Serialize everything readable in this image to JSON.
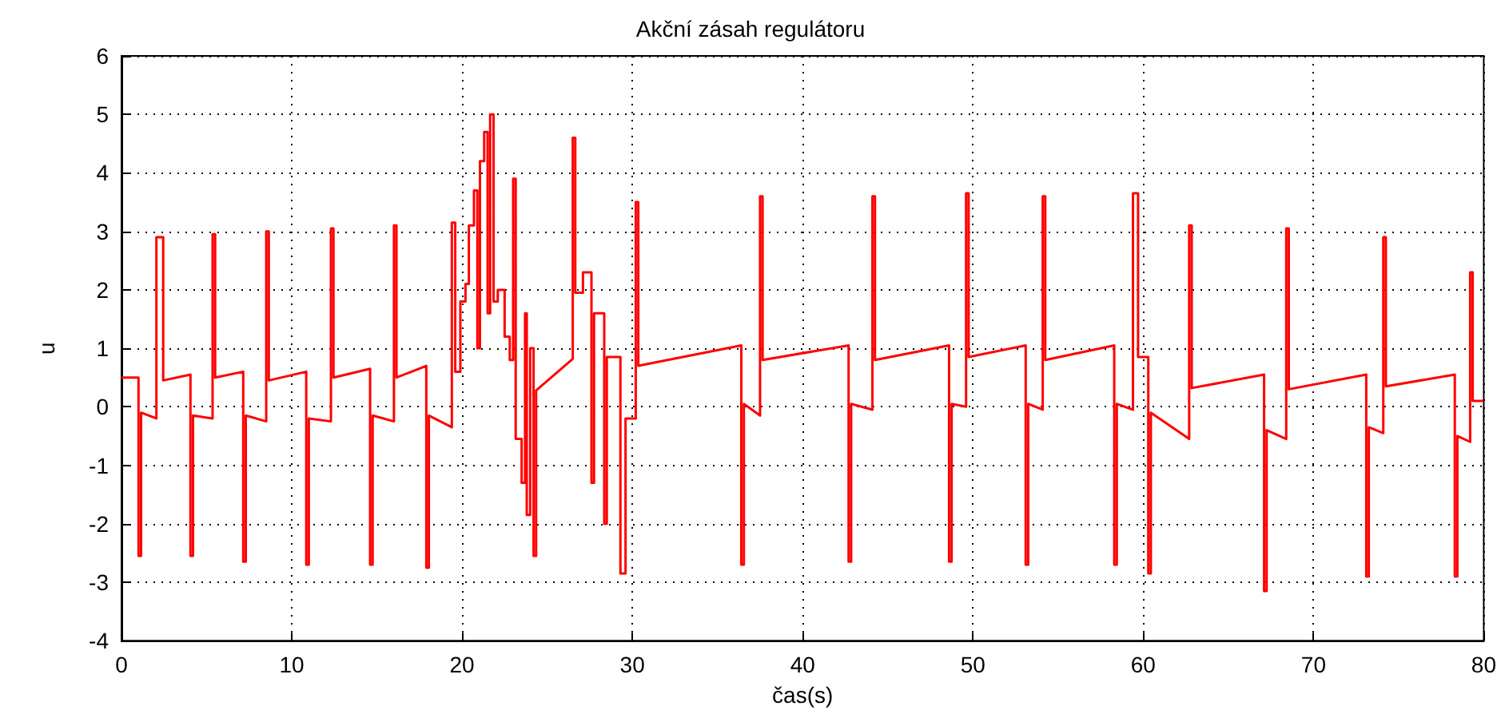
{
  "chart_data": {
    "type": "line",
    "title": "Akční zásah regulátoru",
    "xlabel": "čas(s)",
    "ylabel": "u",
    "xlim": [
      0,
      80
    ],
    "xticks": [
      0,
      10,
      20,
      30,
      40,
      50,
      60,
      70,
      80
    ],
    "ylim": [
      -4,
      6
    ],
    "yticks": [
      -4,
      -3,
      -2,
      -1,
      0,
      1,
      2,
      3,
      4,
      5,
      6
    ],
    "grid": true,
    "marker": "none",
    "line_style": "solid",
    "series": [
      {
        "color": "#ff0000",
        "x": [
          0,
          1.0,
          1.0,
          1.15,
          1.15,
          2.05,
          2.05,
          2.45,
          2.45,
          4.05,
          4.05,
          4.2,
          4.2,
          5.35,
          5.35,
          5.5,
          5.5,
          7.15,
          7.15,
          7.3,
          7.3,
          8.5,
          8.5,
          8.65,
          8.65,
          10.85,
          10.85,
          11.0,
          11.0,
          12.3,
          12.3,
          12.45,
          12.45,
          14.6,
          14.6,
          14.75,
          14.75,
          16.0,
          16.0,
          16.15,
          16.15,
          17.9,
          17.9,
          18.05,
          18.05,
          19.4,
          19.4,
          19.6,
          19.6,
          19.9,
          19.9,
          20.2,
          20.2,
          20.4,
          20.4,
          20.7,
          20.7,
          20.9,
          20.9,
          21.05,
          21.05,
          21.3,
          21.3,
          21.5,
          21.5,
          21.65,
          21.65,
          21.85,
          21.85,
          22.1,
          22.1,
          22.5,
          22.5,
          22.8,
          22.8,
          23.0,
          23.0,
          23.15,
          23.15,
          23.5,
          23.5,
          23.7,
          23.7,
          23.8,
          23.8,
          24.0,
          24.0,
          24.2,
          24.2,
          24.35,
          24.35,
          26.5,
          26.5,
          26.65,
          26.65,
          27.1,
          27.1,
          27.6,
          27.6,
          27.75,
          27.75,
          28.35,
          28.35,
          28.5,
          28.5,
          29.3,
          29.3,
          29.6,
          29.6,
          30.2,
          30.2,
          30.35,
          30.35,
          36.4,
          36.4,
          36.55,
          36.55,
          37.5,
          37.5,
          37.65,
          37.65,
          42.7,
          42.7,
          42.85,
          42.85,
          44.1,
          44.1,
          44.25,
          44.25,
          48.6,
          48.6,
          48.75,
          48.75,
          49.6,
          49.6,
          49.75,
          49.75,
          53.1,
          53.1,
          53.25,
          53.25,
          54.1,
          54.1,
          54.25,
          54.25,
          58.3,
          58.3,
          58.45,
          58.45,
          59.4,
          59.4,
          59.7,
          59.7,
          60.3,
          60.3,
          60.45,
          60.45,
          62.7,
          62.7,
          62.85,
          62.85,
          67.1,
          67.1,
          67.25,
          67.25,
          68.4,
          68.4,
          68.55,
          68.55,
          73.1,
          73.1,
          73.25,
          73.25,
          74.1,
          74.1,
          74.25,
          74.25,
          78.3,
          78.3,
          78.45,
          78.45,
          79.2,
          79.2,
          79.35,
          79.35,
          80
        ],
        "values": [
          0.5,
          0.5,
          -2.55,
          -2.55,
          -0.1,
          -0.2,
          2.9,
          2.9,
          0.45,
          0.55,
          -2.55,
          -2.55,
          -0.15,
          -0.2,
          2.95,
          2.95,
          0.5,
          0.6,
          -2.65,
          -2.65,
          -0.15,
          -0.25,
          3.0,
          3.0,
          0.45,
          0.6,
          -2.7,
          -2.7,
          -0.2,
          -0.25,
          3.05,
          3.05,
          0.5,
          0.65,
          -2.7,
          -2.7,
          -0.15,
          -0.25,
          3.1,
          3.1,
          0.5,
          0.7,
          -2.75,
          -2.75,
          -0.15,
          -0.35,
          3.15,
          3.15,
          0.6,
          0.6,
          1.8,
          1.8,
          2.1,
          2.1,
          3.1,
          3.1,
          3.7,
          3.7,
          1.0,
          1.0,
          4.2,
          4.2,
          4.7,
          4.7,
          1.6,
          1.6,
          5.0,
          5.0,
          1.8,
          1.8,
          2.0,
          2.0,
          1.2,
          1.2,
          0.8,
          0.8,
          3.9,
          3.9,
          -0.55,
          -0.55,
          -1.3,
          -1.3,
          1.6,
          1.6,
          -1.85,
          -1.85,
          1.0,
          1.0,
          -2.55,
          -2.55,
          0.28,
          0.82,
          4.6,
          4.6,
          1.95,
          1.95,
          2.3,
          2.3,
          -1.3,
          -1.3,
          1.6,
          1.6,
          -2.0,
          -2.0,
          0.85,
          0.85,
          -2.85,
          -2.85,
          -0.2,
          -0.2,
          3.5,
          3.5,
          0.7,
          1.05,
          -2.7,
          -2.7,
          0.05,
          -0.15,
          3.6,
          3.6,
          0.8,
          1.05,
          -2.65,
          -2.65,
          0.05,
          -0.05,
          3.6,
          3.6,
          0.8,
          1.05,
          -2.65,
          -2.65,
          0.05,
          0.0,
          3.65,
          3.65,
          0.85,
          1.05,
          -2.7,
          -2.7,
          0.05,
          -0.05,
          3.6,
          3.6,
          0.8,
          1.05,
          -2.7,
          -2.7,
          0.05,
          -0.05,
          3.65,
          3.65,
          0.85,
          0.85,
          -2.85,
          -2.85,
          -0.1,
          -0.55,
          3.1,
          3.1,
          0.32,
          0.55,
          -3.15,
          -3.15,
          -0.4,
          -0.55,
          3.05,
          3.05,
          0.3,
          0.55,
          -2.9,
          -2.9,
          -0.35,
          -0.45,
          2.9,
          2.9,
          0.35,
          0.55,
          -2.9,
          -2.9,
          -0.5,
          -0.6,
          2.3,
          2.3,
          0.1,
          0.1
        ]
      }
    ]
  }
}
